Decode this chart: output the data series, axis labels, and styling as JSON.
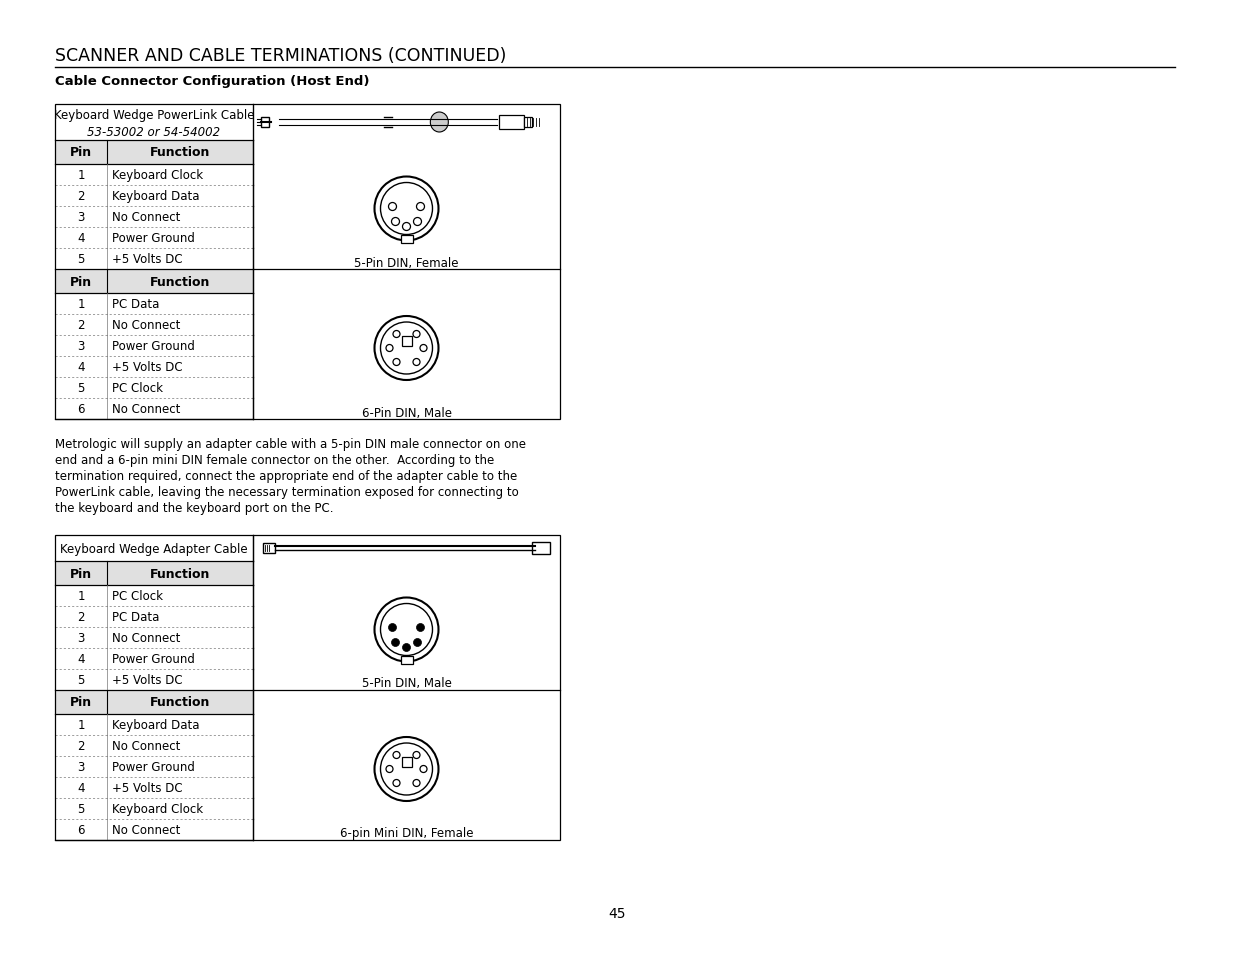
{
  "title": "SCANNER AND CABLE TERMINATIONS (CONTINUED)",
  "subtitle": "Cable Connector Configuration (Host End)",
  "page_number": "45",
  "table1_header_line1": "Keyboard Wedge PowerLink Cable",
  "table1_header_line2": "53-53002 or 54-54002",
  "table1_section1_rows": [
    [
      "1",
      "Keyboard Clock"
    ],
    [
      "2",
      "Keyboard Data"
    ],
    [
      "3",
      "No Connect"
    ],
    [
      "4",
      "Power Ground"
    ],
    [
      "5",
      "+5 Volts DC"
    ]
  ],
  "table1_section1_connector": "5-Pin DIN, Female",
  "table1_section2_rows": [
    [
      "1",
      "PC Data"
    ],
    [
      "2",
      "No Connect"
    ],
    [
      "3",
      "Power Ground"
    ],
    [
      "4",
      "+5 Volts DC"
    ],
    [
      "5",
      "PC Clock"
    ],
    [
      "6",
      "No Connect"
    ]
  ],
  "table1_section2_connector": "6-Pin DIN, Male",
  "paragraph_lines": [
    "Metrologic will supply an adapter cable with a 5-pin DIN male connector on one",
    "end and a 6-pin mini DIN female connector on the other.  According to the",
    "termination required, connect the appropriate end of the adapter cable to the",
    "PowerLink cable, leaving the necessary termination exposed for connecting to",
    "the keyboard and the keyboard port on the PC."
  ],
  "table2_header": "Keyboard Wedge Adapter Cable",
  "table2_section1_rows": [
    [
      "1",
      "PC Clock"
    ],
    [
      "2",
      "PC Data"
    ],
    [
      "3",
      "No Connect"
    ],
    [
      "4",
      "Power Ground"
    ],
    [
      "5",
      "+5 Volts DC"
    ]
  ],
  "table2_section1_connector": "5-Pin DIN, Male",
  "table2_section2_rows": [
    [
      "1",
      "Keyboard Data"
    ],
    [
      "2",
      "No Connect"
    ],
    [
      "3",
      "Power Ground"
    ],
    [
      "4",
      "+5 Volts DC"
    ],
    [
      "5",
      "Keyboard Clock"
    ],
    [
      "6",
      "No Connect"
    ]
  ],
  "table2_section2_connector": "6-pin Mini DIN, Female",
  "bg_color": "#ffffff",
  "text_color": "#000000"
}
